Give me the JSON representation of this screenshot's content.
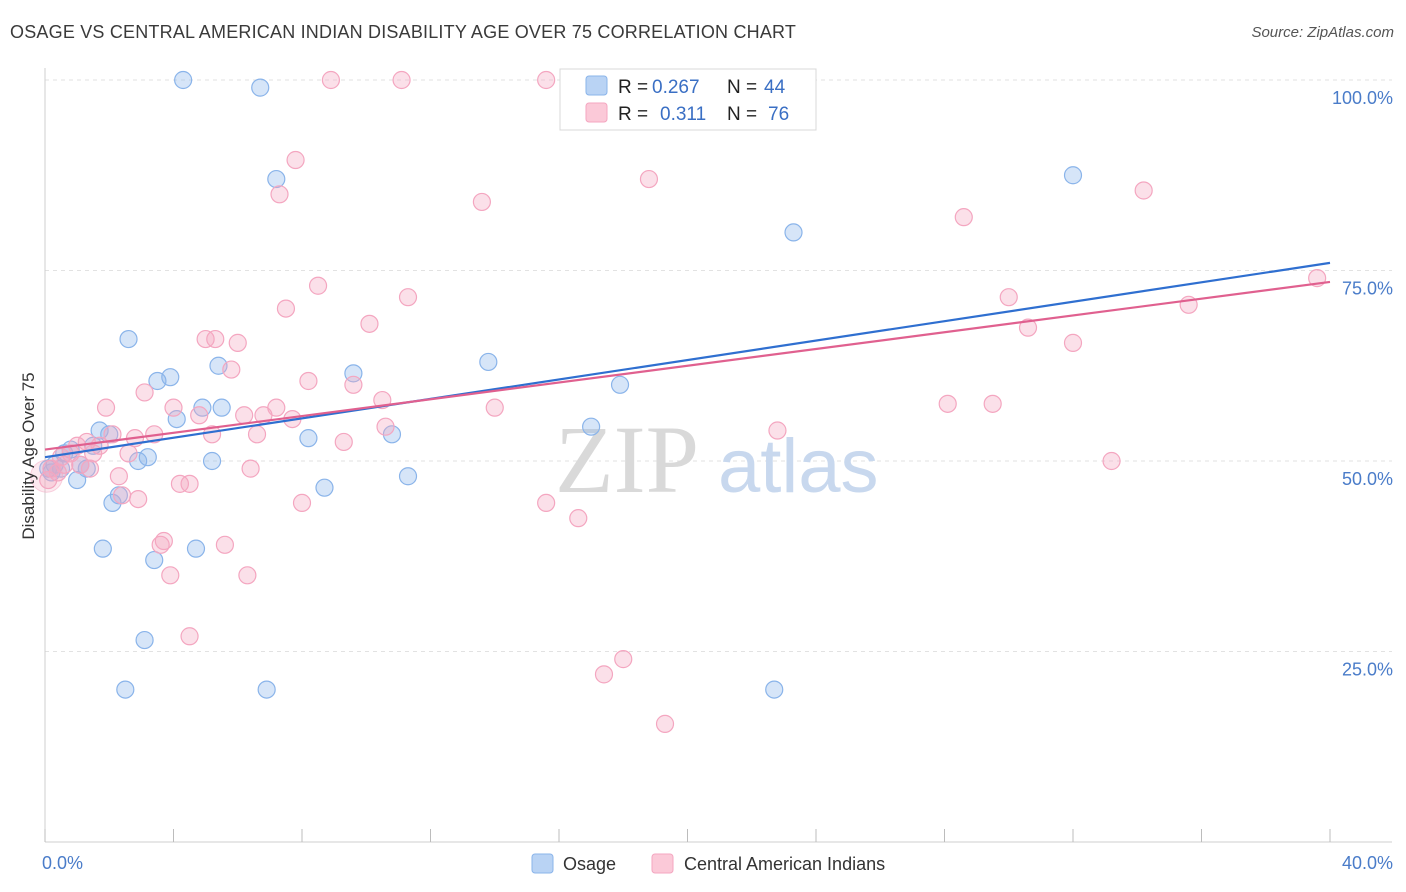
{
  "title": "OSAGE VS CENTRAL AMERICAN INDIAN DISABILITY AGE OVER 75 CORRELATION CHART",
  "source": "Source: ZipAtlas.com",
  "watermark": {
    "zip": "ZIP",
    "atlas": "atlas"
  },
  "chart_data": {
    "type": "scatter",
    "ylabel": "Disability Age Over 75",
    "xlim": [
      0,
      40
    ],
    "ylim": [
      0,
      105
    ],
    "x_tick_labels": [
      "0.0%",
      "40.0%"
    ],
    "y_ticks": [
      25,
      50,
      75,
      100
    ],
    "y_tick_labels": [
      "25.0%",
      "50.0%",
      "75.0%",
      "100.0%"
    ],
    "grid": true,
    "legend": {
      "placement": "top-center",
      "rows": [
        {
          "r_label": "R =",
          "r_value": "0.267",
          "n_label": "N =",
          "n_value": "44"
        },
        {
          "r_label": "R =",
          "r_value": "0.311",
          "n_label": "N =",
          "n_value": "76"
        }
      ]
    },
    "series": [
      {
        "name": "Osage",
        "color": "#8ab4ea",
        "line_color": "#2f6fd0",
        "trend": [
          [
            0,
            50.5
          ],
          [
            40,
            76
          ]
        ],
        "points": [
          [
            0.2,
            48.5
          ],
          [
            0.3,
            49.5
          ],
          [
            0.5,
            49
          ],
          [
            0.6,
            51
          ],
          [
            0.8,
            51.5
          ],
          [
            1.0,
            47.5
          ],
          [
            1.1,
            49.5
          ],
          [
            1.3,
            49
          ],
          [
            1.5,
            52
          ],
          [
            1.7,
            54
          ],
          [
            1.8,
            38.5
          ],
          [
            2.0,
            53.5
          ],
          [
            2.1,
            44.5
          ],
          [
            2.3,
            45.5
          ],
          [
            2.5,
            20
          ],
          [
            2.6,
            66
          ],
          [
            2.9,
            50
          ],
          [
            3.1,
            26.5
          ],
          [
            3.2,
            50.5
          ],
          [
            3.4,
            37
          ],
          [
            3.5,
            60.5
          ],
          [
            3.9,
            61
          ],
          [
            4.1,
            55.5
          ],
          [
            4.3,
            100
          ],
          [
            4.7,
            38.5
          ],
          [
            4.9,
            57
          ],
          [
            5.2,
            50
          ],
          [
            5.4,
            62.5
          ],
          [
            5.5,
            57
          ],
          [
            6.7,
            99
          ],
          [
            6.9,
            20
          ],
          [
            7.2,
            87
          ],
          [
            8.2,
            53
          ],
          [
            8.7,
            46.5
          ],
          [
            9.6,
            61.5
          ],
          [
            10.8,
            53.5
          ],
          [
            11.3,
            48
          ],
          [
            13.8,
            63
          ],
          [
            17.0,
            54.5
          ],
          [
            17.9,
            60
          ],
          [
            22.7,
            20
          ],
          [
            23.3,
            80
          ],
          [
            32.0,
            87.5
          ],
          [
            0.1,
            49
          ]
        ]
      },
      {
        "name": "Central American Indians",
        "color": "#f4a6c0",
        "line_color": "#e0608f",
        "trend": [
          [
            0,
            51.5
          ],
          [
            40,
            73.5
          ]
        ],
        "points": [
          [
            0.1,
            47.5
          ],
          [
            0.2,
            49
          ],
          [
            0.4,
            48.5
          ],
          [
            0.5,
            50.5
          ],
          [
            0.6,
            49.5
          ],
          [
            0.8,
            51
          ],
          [
            1.0,
            52
          ],
          [
            1.1,
            49.5
          ],
          [
            1.3,
            52.5
          ],
          [
            1.5,
            51
          ],
          [
            1.7,
            52
          ],
          [
            1.9,
            57
          ],
          [
            2.1,
            53.5
          ],
          [
            2.3,
            48
          ],
          [
            2.4,
            45.5
          ],
          [
            2.6,
            51
          ],
          [
            2.8,
            53
          ],
          [
            2.9,
            45
          ],
          [
            3.1,
            59
          ],
          [
            3.4,
            53.5
          ],
          [
            3.6,
            39
          ],
          [
            3.7,
            39.5
          ],
          [
            3.9,
            35
          ],
          [
            4.0,
            57
          ],
          [
            4.2,
            47
          ],
          [
            4.5,
            27
          ],
          [
            4.5,
            47
          ],
          [
            4.8,
            56
          ],
          [
            5.0,
            66
          ],
          [
            5.2,
            53.5
          ],
          [
            5.3,
            66
          ],
          [
            5.6,
            39
          ],
          [
            5.8,
            62
          ],
          [
            6.0,
            65.5
          ],
          [
            6.2,
            56
          ],
          [
            6.3,
            35
          ],
          [
            6.4,
            49
          ],
          [
            6.6,
            53.5
          ],
          [
            6.8,
            56
          ],
          [
            7.2,
            57
          ],
          [
            7.3,
            85
          ],
          [
            7.5,
            70
          ],
          [
            7.7,
            55.5
          ],
          [
            7.8,
            89.5
          ],
          [
            8.0,
            44.5
          ],
          [
            8.2,
            60.5
          ],
          [
            8.5,
            73
          ],
          [
            8.9,
            100
          ],
          [
            9.3,
            52.5
          ],
          [
            9.6,
            60
          ],
          [
            10.1,
            68
          ],
          [
            10.5,
            58
          ],
          [
            10.6,
            54.5
          ],
          [
            11.1,
            100
          ],
          [
            11.3,
            71.5
          ],
          [
            13.6,
            84
          ],
          [
            14.0,
            57
          ],
          [
            15.6,
            100
          ],
          [
            15.6,
            44.5
          ],
          [
            16.6,
            42.5
          ],
          [
            17.4,
            22
          ],
          [
            18.0,
            24
          ],
          [
            18.8,
            87
          ],
          [
            19.3,
            15.5
          ],
          [
            22.8,
            54
          ],
          [
            28.1,
            57.5
          ],
          [
            28.6,
            82
          ],
          [
            29.5,
            57.5
          ],
          [
            30.0,
            71.5
          ],
          [
            30.6,
            67.5
          ],
          [
            32.0,
            65.5
          ],
          [
            33.2,
            50
          ],
          [
            34.2,
            85.5
          ],
          [
            35.6,
            70.5
          ],
          [
            39.6,
            74
          ],
          [
            1.4,
            49
          ]
        ]
      }
    ]
  }
}
